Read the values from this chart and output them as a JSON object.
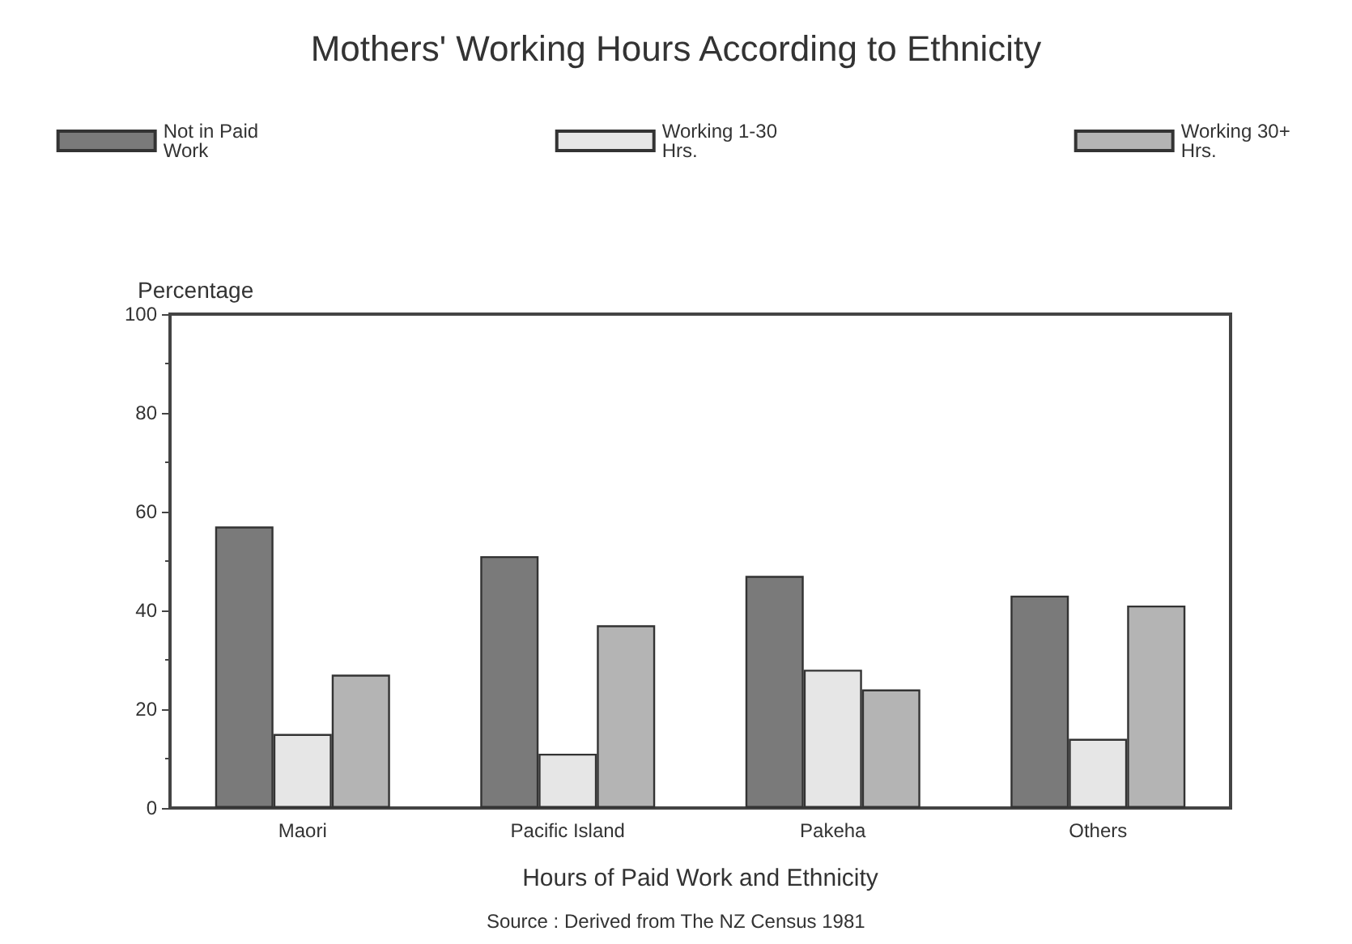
{
  "chart_data": {
    "type": "bar",
    "title": "Mothers' Working Hours According to Ethnicity",
    "xlabel": "Hours of Paid Work and Ethnicity",
    "ylabel": "Percentage",
    "annotations": [
      "Source : Derived from The NZ Census 1981"
    ],
    "categories": [
      "Maori",
      "Pacific Island",
      "Pakeha",
      "Others"
    ],
    "series": [
      {
        "name": "Not in Paid Work",
        "color": "#7a7a7a",
        "values": [
          57,
          51,
          47,
          43
        ]
      },
      {
        "name": "Working 1-30 Hrs.",
        "color": "#e6e6e6",
        "values": [
          15,
          11,
          28,
          14
        ]
      },
      {
        "name": "Working 30+ Hrs.",
        "color": "#b4b4b4",
        "values": [
          27,
          37,
          24,
          41
        ]
      }
    ],
    "ylim": [
      0,
      100
    ],
    "yticks": [
      0,
      20,
      40,
      60,
      80,
      100
    ],
    "grid": false,
    "legend": "top"
  }
}
